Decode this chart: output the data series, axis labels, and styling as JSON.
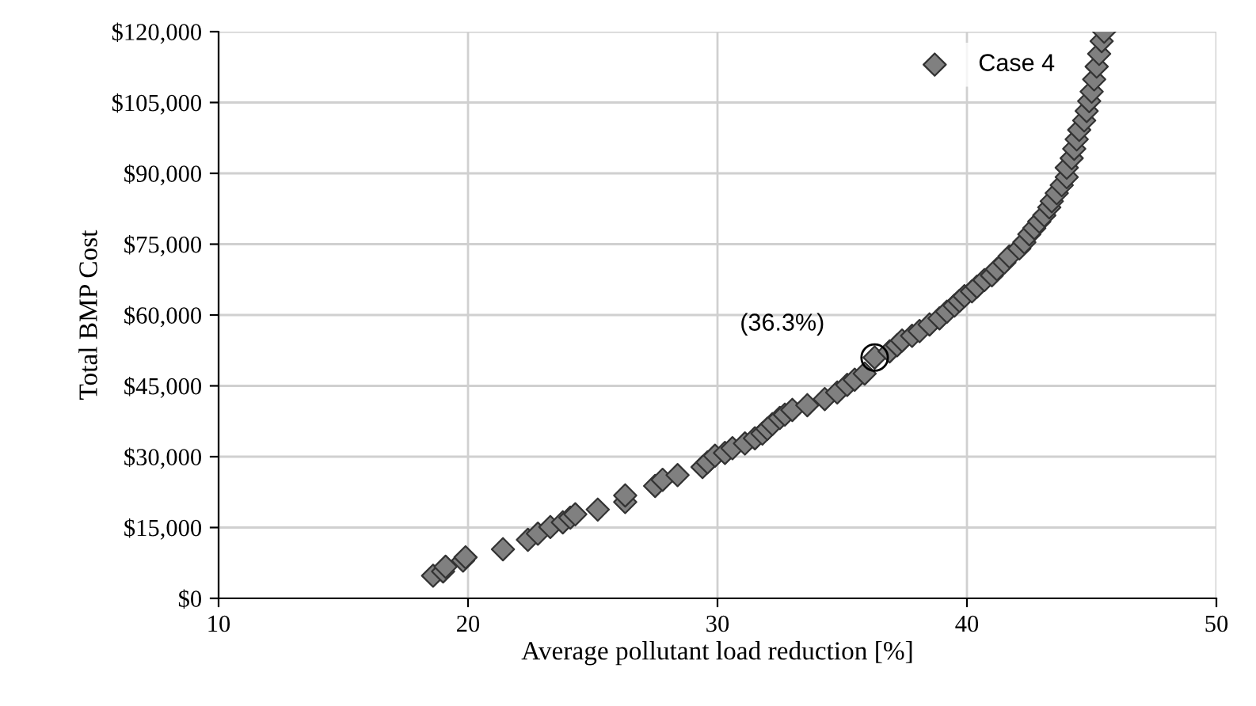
{
  "chart_data": {
    "type": "scatter",
    "xlabel": "Average pollutant load reduction [%]",
    "ylabel": "Total BMP Cost",
    "xlim": [
      10,
      50
    ],
    "xticks": [
      10,
      20,
      30,
      40,
      50
    ],
    "ylim": [
      0,
      120000
    ],
    "yticks": [
      {
        "value": 0,
        "label": "$0"
      },
      {
        "value": 15000,
        "label": "$15,000"
      },
      {
        "value": 30000,
        "label": "$30,000"
      },
      {
        "value": 45000,
        "label": "$45,000"
      },
      {
        "value": 60000,
        "label": "$60,000"
      },
      {
        "value": 75000,
        "label": "$75,000"
      },
      {
        "value": 90000,
        "label": "$90,000"
      },
      {
        "value": 105000,
        "label": "$105,000"
      },
      {
        "value": 120000,
        "label": "$120,000"
      }
    ],
    "grid": true,
    "legend": "top right",
    "marker": "diamond",
    "annotations": [
      {
        "text": "(36.3%)",
        "x": 36.3,
        "y": 51000
      }
    ],
    "series": [
      {
        "name": "Case 4",
        "color": "#808080",
        "x": [
          18.6,
          19.0,
          19.1,
          19.8,
          19.9,
          21.4,
          22.4,
          22.8,
          23.3,
          23.8,
          24.1,
          24.3,
          25.2,
          26.3,
          26.3,
          27.5,
          27.8,
          28.4,
          29.4,
          29.6,
          29.9,
          30.3,
          30.6,
          31.1,
          31.5,
          31.8,
          32.0,
          32.2,
          32.5,
          32.7,
          33.0,
          33.6,
          34.3,
          34.8,
          35.2,
          35.5,
          35.9,
          36.3,
          36.9,
          37.2,
          37.4,
          37.8,
          38.1,
          38.5,
          38.9,
          39.2,
          39.5,
          39.7,
          39.9,
          40.2,
          40.4,
          40.7,
          41.0,
          41.2,
          41.5,
          41.7,
          42.1,
          42.3,
          42.5,
          42.7,
          42.9,
          43.1,
          43.3,
          43.4,
          43.6,
          43.8,
          44.0,
          44.0,
          44.2,
          44.3,
          44.4,
          44.5,
          44.7,
          44.8,
          44.9,
          45.0,
          45.1,
          45.2,
          45.3,
          45.4,
          45.5
        ],
        "values": [
          4800,
          5700,
          6700,
          8000,
          8700,
          10400,
          12400,
          13700,
          15100,
          16100,
          17100,
          17800,
          18800,
          20400,
          21800,
          23800,
          25100,
          26100,
          27800,
          28800,
          30200,
          30800,
          31800,
          32800,
          33900,
          34900,
          35900,
          36900,
          38200,
          38900,
          39900,
          40900,
          42200,
          43600,
          45200,
          46300,
          47600,
          51000,
          52300,
          53600,
          54600,
          55600,
          56600,
          58000,
          59300,
          60700,
          62000,
          63000,
          64000,
          65000,
          66000,
          67400,
          68400,
          69700,
          71100,
          72400,
          74100,
          75400,
          77100,
          78400,
          79800,
          81100,
          82800,
          84100,
          85800,
          87500,
          89200,
          91200,
          93200,
          95200,
          97200,
          99200,
          101200,
          103200,
          105300,
          107300,
          109900,
          112600,
          115300,
          118000,
          120000
        ]
      }
    ]
  }
}
